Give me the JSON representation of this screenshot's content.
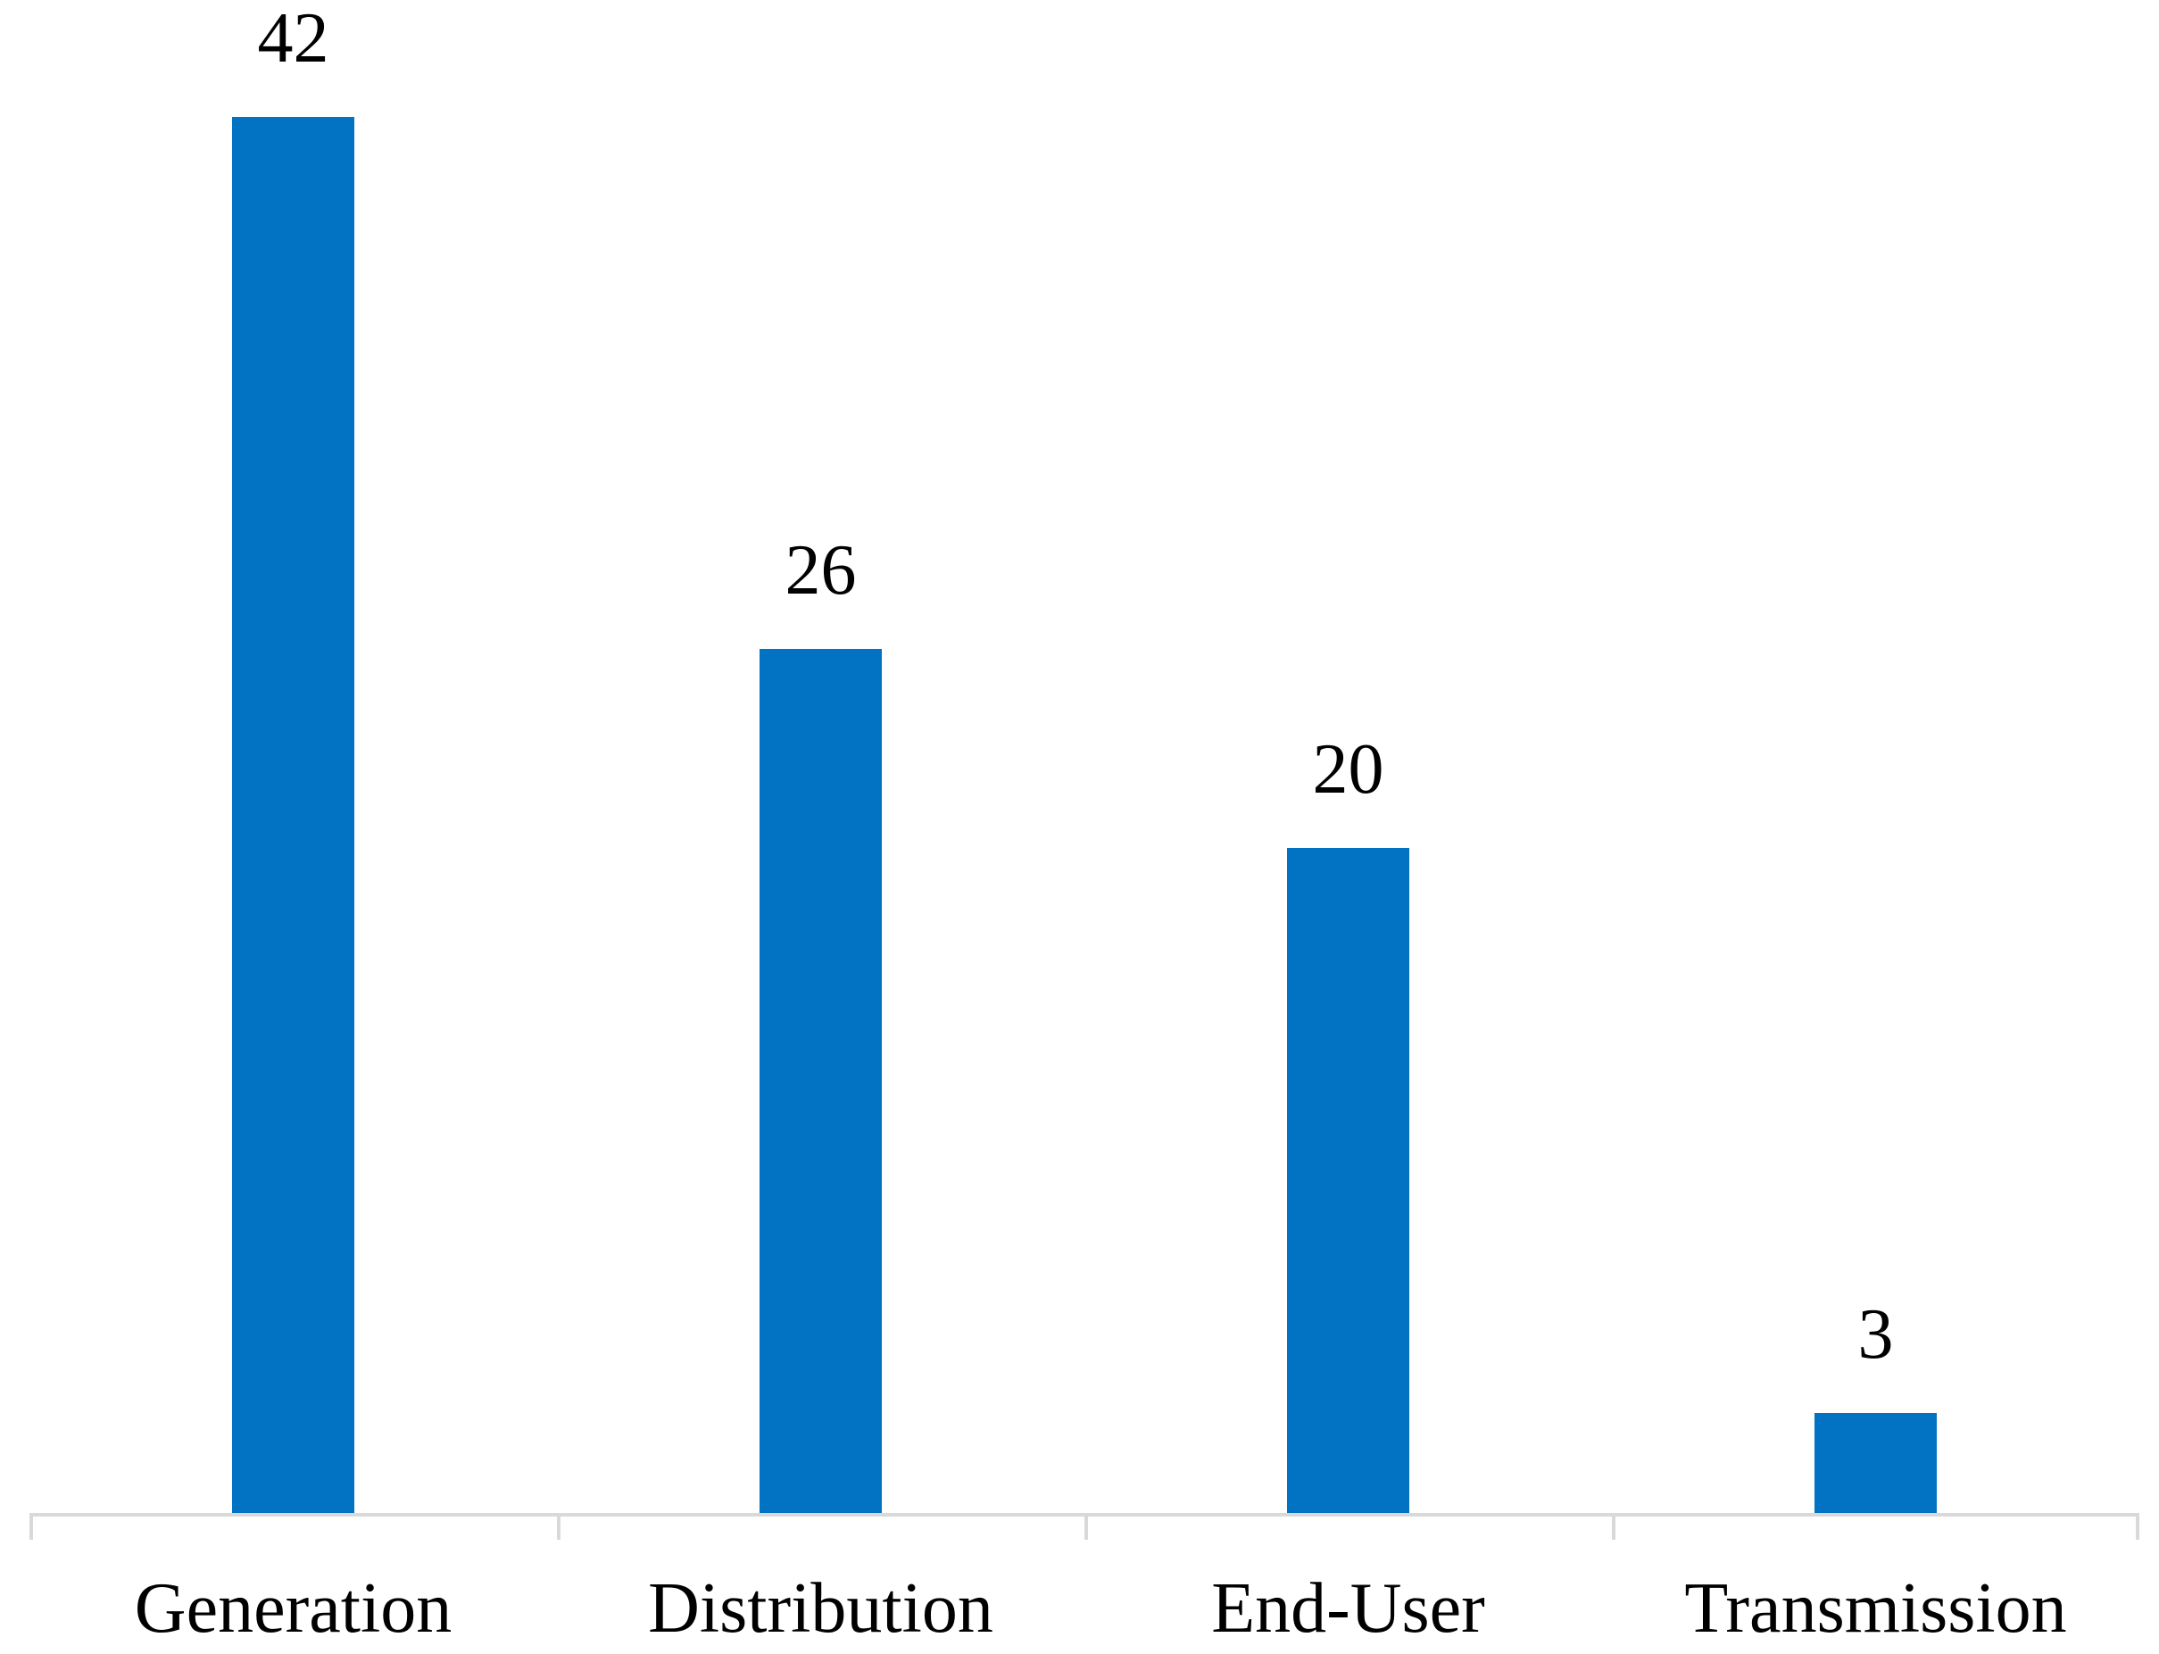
{
  "chart_data": {
    "type": "bar",
    "categories": [
      "Generation",
      "Distribution",
      "End-User",
      "Transmission"
    ],
    "values": [
      42,
      26,
      20,
      3
    ],
    "data_labels": [
      "42",
      "26",
      "20",
      "3"
    ],
    "title": "",
    "xlabel": "",
    "ylabel": "",
    "ylim": [
      0,
      42
    ],
    "grid": false,
    "legend": "none",
    "colors": {
      "bar": "#0272C2",
      "axis": "#D9D9D9",
      "text": "#000000",
      "background": "#FFFFFF"
    }
  }
}
